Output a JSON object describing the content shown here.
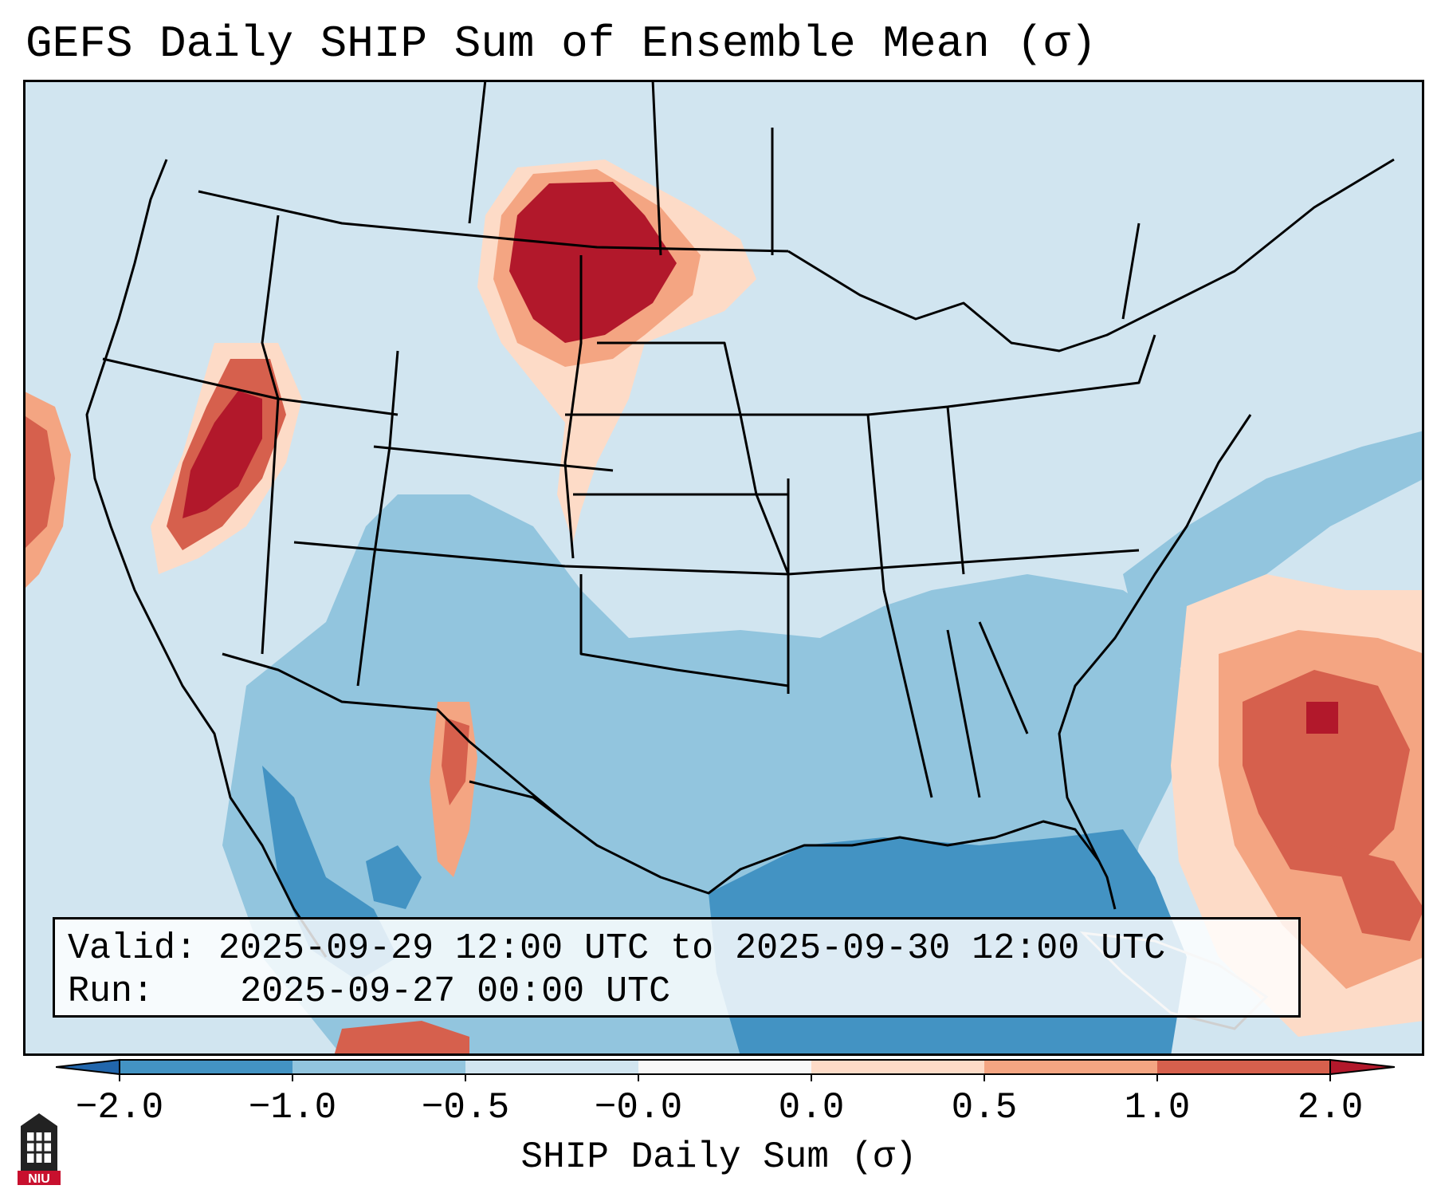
{
  "title": "GEFS Daily SHIP Sum of Ensemble Mean (σ)",
  "info_box": {
    "valid_label": "Valid:",
    "valid_value": "2025-09-29 12:00 UTC to 2025-09-30 12:00 UTC",
    "run_label": "Run:",
    "run_value": "2025-09-27 00:00 UTC"
  },
  "colorbar": {
    "label": "SHIP Daily Sum (σ)",
    "ticks": [
      "−2.0",
      "−1.0",
      "−0.5",
      "−0.0",
      "0.0",
      "0.5",
      "1.0",
      "2.0"
    ],
    "bins": [
      {
        "range": "< -2.0",
        "color": "#2166ac"
      },
      {
        "range": "-2.0 to -1.0",
        "color": "#4393c3"
      },
      {
        "range": "-1.0 to -0.5",
        "color": "#92c5de"
      },
      {
        "range": "-0.5 to -0.0",
        "color": "#d1e5f0"
      },
      {
        "range": "-0.0 to 0.0",
        "color": "#f7f7f7"
      },
      {
        "range": "0.0 to 0.5",
        "color": "#fddbc7"
      },
      {
        "range": "0.5 to 1.0",
        "color": "#f4a582"
      },
      {
        "range": "1.0 to 2.0",
        "color": "#d6604d"
      },
      {
        "range": "> 2.0",
        "color": "#b2182b"
      }
    ]
  },
  "map_regions": [
    {
      "name": "northern-plains-max",
      "value": "> 2.0",
      "color": "#b2182b"
    },
    {
      "name": "nevada-max",
      "value": "1.0 to 2.0",
      "color": "#d6604d"
    },
    {
      "name": "western-atlantic-max",
      "value": "1.0 to 2.0",
      "color": "#d6604d"
    },
    {
      "name": "gulf-of-mexico-min",
      "value": "-2.0 to -1.0",
      "color": "#4393c3"
    }
  ],
  "logo": {
    "text": "NIU"
  }
}
